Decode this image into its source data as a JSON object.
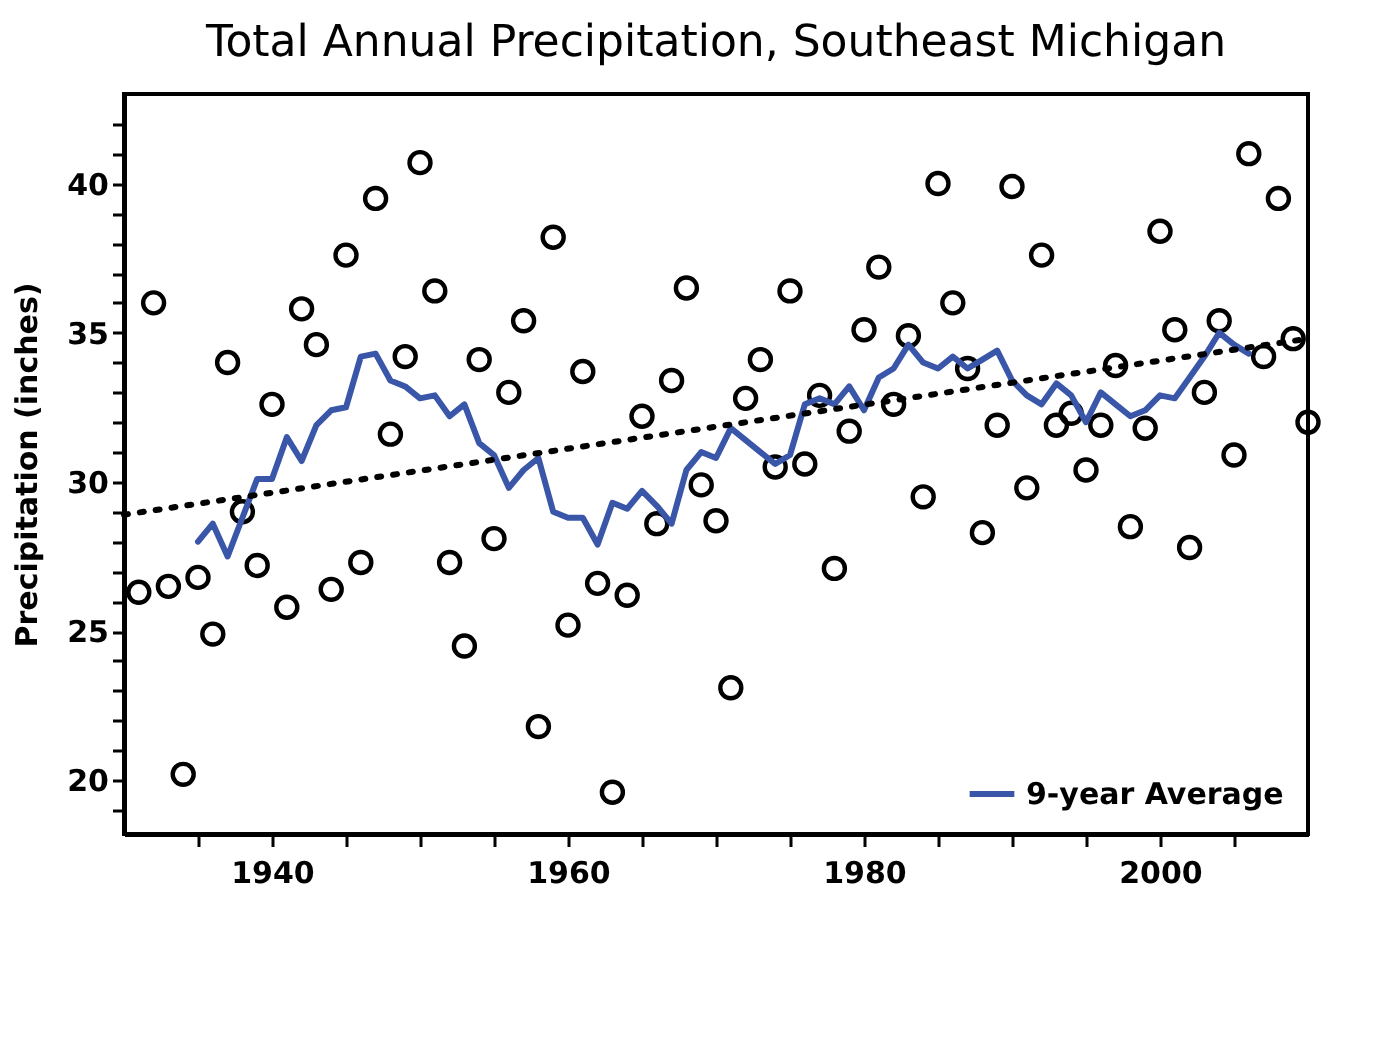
{
  "chart_data": {
    "type": "scatter",
    "title": "Total Annual Precipitation, Southeast Michigan",
    "ylabel": "Precipitation (inches)",
    "xlim": [
      1930,
      2010
    ],
    "xticks": [
      {
        "value": 1935,
        "label": null
      },
      1940,
      {
        "value": 1945,
        "label": null
      },
      {
        "value": 1950,
        "label": null
      },
      {
        "value": 1955,
        "label": null
      },
      1960,
      {
        "value": 1965,
        "label": null
      },
      {
        "value": 1970,
        "label": null
      },
      {
        "value": 1975,
        "label": null
      },
      1980,
      {
        "value": 1985,
        "label": null
      },
      {
        "value": 1990,
        "label": null
      },
      {
        "value": 1995,
        "label": null
      },
      2000,
      {
        "value": 2005,
        "label": null
      }
    ],
    "ylim": [
      18.2,
      43
    ],
    "yticks": [
      {
        "value": 19,
        "label": null
      },
      20,
      {
        "value": 21,
        "label": null
      },
      {
        "value": 22,
        "label": null
      },
      {
        "value": 23,
        "label": null
      },
      {
        "value": 24,
        "label": null
      },
      25,
      {
        "value": 26,
        "label": null
      },
      {
        "value": 27,
        "label": null
      },
      {
        "value": 28,
        "label": null
      },
      {
        "value": 29,
        "label": null
      },
      30,
      {
        "value": 31,
        "label": null
      },
      {
        "value": 32,
        "label": null
      },
      {
        "value": 33,
        "label": null
      },
      {
        "value": 34,
        "label": null
      },
      35,
      {
        "value": 36,
        "label": null
      },
      {
        "value": 37,
        "label": null
      },
      {
        "value": 38,
        "label": null
      },
      {
        "value": 39,
        "label": null
      },
      40,
      {
        "value": 41,
        "label": null
      },
      {
        "value": 42,
        "label": null
      }
    ],
    "grid": false,
    "legend": "bottom right",
    "series": [
      {
        "type": "scatter",
        "color": "#000000",
        "marker": "circle",
        "x": [
          1931,
          1932,
          1933,
          1934,
          1935,
          1936,
          1937,
          1938,
          1939,
          1940,
          1941,
          1942,
          1943,
          1944,
          1945,
          1946,
          1947,
          1948,
          1949,
          1950,
          1951,
          1952,
          1953,
          1954,
          1955,
          1956,
          1957,
          1958,
          1959,
          1960,
          1961,
          1962,
          1963,
          1964,
          1965,
          1966,
          1967,
          1968,
          1969,
          1970,
          1971,
          1972,
          1973,
          1974,
          1975,
          1976,
          1977,
          1978,
          1979,
          1980,
          1981,
          1982,
          1983,
          1984,
          1985,
          1986,
          1987,
          1988,
          1989,
          1990,
          1991,
          1992,
          1993,
          1994,
          1995,
          1996,
          1997,
          1998,
          1999,
          2000,
          2001,
          2002,
          2003,
          2004,
          2005,
          2006,
          2007,
          2008,
          2009,
          2010
        ],
        "values": [
          26.3,
          36.0,
          26.5,
          20.2,
          26.8,
          24.9,
          34.0,
          29.0,
          27.2,
          32.6,
          25.8,
          35.8,
          34.6,
          26.4,
          37.6,
          27.3,
          39.5,
          31.6,
          34.2,
          40.7,
          36.4,
          27.3,
          24.5,
          34.1,
          28.1,
          33.0,
          35.4,
          21.8,
          38.2,
          25.2,
          33.7,
          26.6,
          19.6,
          26.2,
          32.2,
          28.6,
          33.4,
          36.5,
          29.9,
          28.7,
          23.1,
          32.8,
          34.1,
          30.5,
          36.4,
          30.6,
          32.9,
          27.1,
          31.7,
          35.1,
          37.2,
          32.6,
          34.9,
          29.5,
          40.0,
          36.0,
          33.8,
          28.3,
          31.9,
          39.9,
          29.8,
          37.6,
          31.9,
          32.3,
          30.4,
          31.9,
          33.9,
          28.5,
          31.8,
          38.4,
          35.1,
          27.8,
          33.0,
          35.4,
          30.9,
          41.0,
          34.2,
          39.5,
          34.8,
          32.0
        ]
      },
      {
        "type": "line",
        "name": "9-year Average",
        "color": "#3a56a8",
        "line_style": "solid",
        "marker": "none",
        "x": [
          1935,
          1936,
          1937,
          1938,
          1939,
          1940,
          1941,
          1942,
          1943,
          1944,
          1945,
          1946,
          1947,
          1948,
          1949,
          1950,
          1951,
          1952,
          1953,
          1954,
          1955,
          1956,
          1957,
          1958,
          1959,
          1960,
          1961,
          1962,
          1963,
          1964,
          1965,
          1966,
          1967,
          1968,
          1969,
          1970,
          1971,
          1972,
          1973,
          1974,
          1975,
          1976,
          1977,
          1978,
          1979,
          1980,
          1981,
          1982,
          1983,
          1984,
          1985,
          1986,
          1987,
          1988,
          1989,
          1990,
          1991,
          1992,
          1993,
          1994,
          1995,
          1996,
          1997,
          1998,
          1999,
          2000,
          2001,
          2002,
          2003,
          2004,
          2005,
          2006
        ],
        "values": [
          28.0,
          28.6,
          27.5,
          28.8,
          30.1,
          30.1,
          31.5,
          30.7,
          31.9,
          32.4,
          32.5,
          34.2,
          34.3,
          33.4,
          33.2,
          32.8,
          32.9,
          32.2,
          32.6,
          31.3,
          30.9,
          29.8,
          30.4,
          30.8,
          29.0,
          28.8,
          28.8,
          27.9,
          29.3,
          29.1,
          29.7,
          29.2,
          28.6,
          30.4,
          31.0,
          30.8,
          31.8,
          31.4,
          31.0,
          30.6,
          30.9,
          32.6,
          32.8,
          32.6,
          33.2,
          32.4,
          33.5,
          33.8,
          34.6,
          34.0,
          33.8,
          34.2,
          33.8,
          34.1,
          34.4,
          33.4,
          32.9,
          32.6,
          33.3,
          32.9,
          32.0,
          33.0,
          32.6,
          32.2,
          32.4,
          32.9,
          32.8,
          33.5,
          34.2,
          35.0,
          34.6,
          34.3
        ]
      },
      {
        "type": "line",
        "color": "#000000",
        "line_style": "dotted",
        "marker": "none",
        "x": [
          1930,
          2010
        ],
        "values": [
          28.9,
          34.8
        ]
      }
    ]
  }
}
